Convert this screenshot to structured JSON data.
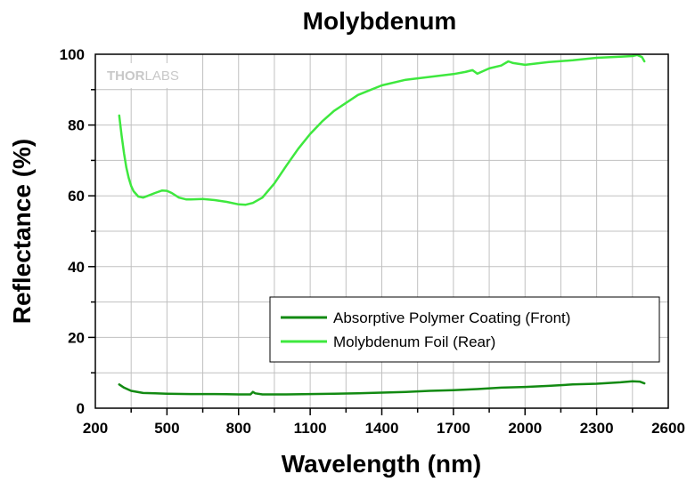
{
  "chart_data": {
    "type": "line",
    "title": "Molybdenum",
    "xlabel": "Wavelength (nm)",
    "ylabel": "Reflectance (%)",
    "xlim": [
      200,
      2600
    ],
    "ylim": [
      0,
      100
    ],
    "xticks": [
      200,
      500,
      800,
      1100,
      1400,
      1700,
      2000,
      2300,
      2600
    ],
    "yticks": [
      0,
      20,
      40,
      60,
      80,
      100
    ],
    "grid": true,
    "legend_position": "bottom-right",
    "watermark": {
      "part1": "THOR",
      "part2": "LABS"
    },
    "series": [
      {
        "name": "Absorptive Polymer Coating (Front)",
        "color": "#128a12",
        "x": [
          300,
          320,
          350,
          400,
          450,
          500,
          600,
          700,
          800,
          850,
          860,
          870,
          900,
          1000,
          1100,
          1200,
          1300,
          1400,
          1500,
          1600,
          1700,
          1800,
          1900,
          2000,
          2100,
          2200,
          2300,
          2400,
          2450,
          2480,
          2500
        ],
        "y": [
          6.7,
          5.8,
          4.9,
          4.3,
          4.2,
          4.1,
          4.0,
          4.0,
          3.9,
          3.9,
          4.6,
          4.2,
          3.9,
          3.9,
          4.0,
          4.1,
          4.2,
          4.4,
          4.6,
          4.9,
          5.1,
          5.4,
          5.8,
          6.0,
          6.3,
          6.7,
          6.9,
          7.3,
          7.6,
          7.5,
          7.0
        ]
      },
      {
        "name": "Molybdenum Foil (Rear)",
        "color": "#3ee83e",
        "x": [
          300,
          310,
          320,
          330,
          340,
          350,
          360,
          380,
          400,
          420,
          450,
          480,
          500,
          520,
          550,
          580,
          600,
          650,
          700,
          750,
          800,
          830,
          860,
          900,
          950,
          1000,
          1050,
          1100,
          1150,
          1200,
          1300,
          1400,
          1500,
          1600,
          1700,
          1750,
          1780,
          1800,
          1850,
          1900,
          1930,
          1950,
          2000,
          2100,
          2200,
          2300,
          2400,
          2450,
          2470,
          2490,
          2500
        ],
        "y": [
          82.7,
          77.0,
          72.0,
          68.0,
          65.0,
          62.8,
          61.3,
          59.8,
          59.5,
          60.0,
          60.8,
          61.5,
          61.4,
          60.8,
          59.5,
          59.0,
          59.0,
          59.1,
          58.8,
          58.3,
          57.6,
          57.5,
          58.0,
          59.5,
          63.5,
          68.5,
          73.3,
          77.5,
          81.0,
          84.0,
          88.5,
          91.2,
          92.8,
          93.6,
          94.4,
          95.0,
          95.5,
          94.5,
          96.0,
          96.8,
          98.0,
          97.5,
          97.0,
          97.8,
          98.3,
          99.0,
          99.3,
          99.5,
          99.8,
          99.2,
          98.0
        ]
      }
    ]
  }
}
